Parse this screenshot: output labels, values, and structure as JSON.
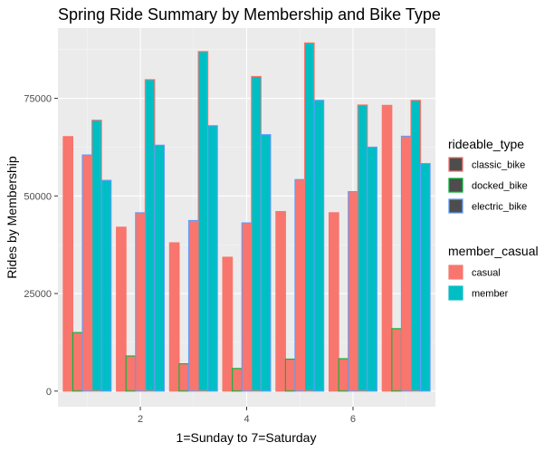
{
  "chart_data": {
    "type": "bar",
    "title": "Spring Ride Summary by Membership and Bike Type",
    "xlabel": "1=Sunday to 7=Saturday",
    "ylabel": "Rides by Membership",
    "x": [
      1,
      2,
      3,
      4,
      5,
      6,
      7
    ],
    "x_ticks": [
      "2",
      "4",
      "6"
    ],
    "x_tick_values": [
      2,
      4,
      6
    ],
    "xlim": [
      0.45,
      7.55
    ],
    "ylim": [
      -4000,
      93000
    ],
    "y_ticks": [
      "0",
      "25000",
      "50000",
      "75000"
    ],
    "y_tick_values": [
      0,
      25000,
      50000,
      75000
    ],
    "grid": true,
    "legend_position": "right",
    "fill_legend": {
      "title": "member_casual",
      "entries": [
        {
          "label": "casual",
          "color": "#F8766D"
        },
        {
          "label": "member",
          "color": "#00BFC4"
        }
      ]
    },
    "outline_legend": {
      "title": "rideable_type",
      "entries": [
        {
          "label": "classic_bike",
          "color": "#F8766D"
        },
        {
          "label": "docked_bike",
          "color": "#00BA38"
        },
        {
          "label": "electric_bike",
          "color": "#619CFF"
        }
      ]
    },
    "bar_order": [
      {
        "member": "casual",
        "bike": "classic_bike"
      },
      {
        "member": "casual",
        "bike": "docked_bike"
      },
      {
        "member": "casual",
        "bike": "electric_bike"
      },
      {
        "member": "member",
        "bike": "classic_bike"
      },
      {
        "member": "member",
        "bike": "electric_bike"
      }
    ],
    "series": [
      {
        "member": "casual",
        "bike": "classic_bike",
        "values": [
          65200,
          42000,
          38000,
          34300,
          46000,
          45700,
          73200
        ]
      },
      {
        "member": "casual",
        "bike": "docked_bike",
        "values": [
          15000,
          9000,
          7000,
          5800,
          8200,
          8300,
          16000
        ]
      },
      {
        "member": "casual",
        "bike": "electric_bike",
        "values": [
          60500,
          45700,
          43700,
          43100,
          54200,
          51100,
          65300
        ]
      },
      {
        "member": "member",
        "bike": "classic_bike",
        "values": [
          69400,
          79800,
          87000,
          80600,
          89200,
          73300,
          74500
        ]
      },
      {
        "member": "member",
        "bike": "electric_bike",
        "values": [
          54000,
          63000,
          68000,
          65700,
          74500,
          62500,
          58300
        ]
      }
    ]
  }
}
